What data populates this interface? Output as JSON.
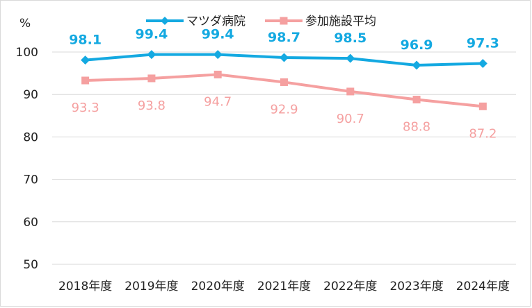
{
  "chart_data": {
    "type": "line",
    "ylabel": "%",
    "ylim": [
      50,
      100
    ],
    "yticks": [
      50,
      60,
      70,
      80,
      90,
      100
    ],
    "grid": true,
    "legend_position": "top",
    "categories": [
      "2018年度",
      "2019年度",
      "2020年度",
      "2021年度",
      "2022年度",
      "2023年度",
      "2024年度"
    ],
    "series": [
      {
        "name": "マツダ病院",
        "values": [
          98.1,
          99.4,
          99.4,
          98.7,
          98.5,
          96.9,
          97.3
        ],
        "color": "#14a9e1",
        "marker": "diamond"
      },
      {
        "name": "参加施設平均",
        "values": [
          93.3,
          93.8,
          94.7,
          92.9,
          90.7,
          88.8,
          87.2
        ],
        "color": "#f5a0a0",
        "marker": "square"
      }
    ]
  }
}
